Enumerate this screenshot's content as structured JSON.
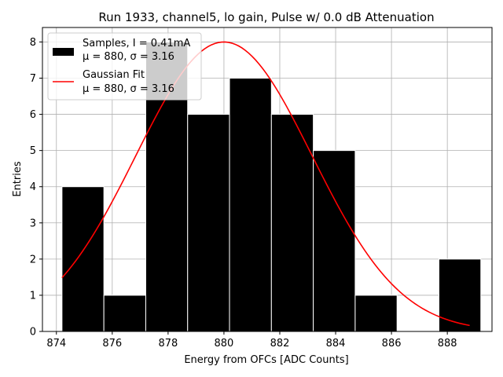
{
  "chart_data": {
    "type": "bar",
    "title": "Run 1933, channel5, lo gain, Pulse w/ 0.0 dB Attenuation",
    "xlabel": "Energy from OFCs [ADC Counts]",
    "ylabel": "Entries",
    "xlim": [
      873.5,
      889.6
    ],
    "ylim": [
      0,
      8.4
    ],
    "xticks": [
      874,
      876,
      878,
      880,
      882,
      884,
      886,
      888
    ],
    "yticks": [
      0,
      1,
      2,
      3,
      4,
      5,
      6,
      7,
      8
    ],
    "grid": true,
    "legend_position": "top-left",
    "histogram": {
      "name": "Samples, I = 0.41mA",
      "stats": "μ = 880, σ = 3.16",
      "color": "#000000",
      "edge_color": "#ffffff",
      "bins": [
        {
          "x0": 874.2,
          "x1": 875.7,
          "count": 4
        },
        {
          "x0": 875.7,
          "x1": 877.2,
          "count": 1
        },
        {
          "x0": 877.2,
          "x1": 878.7,
          "count": 8
        },
        {
          "x0": 878.7,
          "x1": 880.2,
          "count": 6
        },
        {
          "x0": 880.2,
          "x1": 881.7,
          "count": 7
        },
        {
          "x0": 881.7,
          "x1": 883.2,
          "count": 6
        },
        {
          "x0": 883.2,
          "x1": 884.7,
          "count": 5
        },
        {
          "x0": 884.7,
          "x1": 886.2,
          "count": 1
        },
        {
          "x0": 886.2,
          "x1": 887.7,
          "count": 0
        },
        {
          "x0": 887.7,
          "x1": 889.2,
          "count": 2
        }
      ]
    },
    "fit": {
      "name": "Gaussian Fit",
      "stats": "μ = 880, σ = 3.16",
      "color": "#ff0000",
      "mu": 880.0,
      "sigma": 3.16,
      "amplitude": 8.0,
      "x_range": [
        874.2,
        888.8
      ]
    }
  }
}
